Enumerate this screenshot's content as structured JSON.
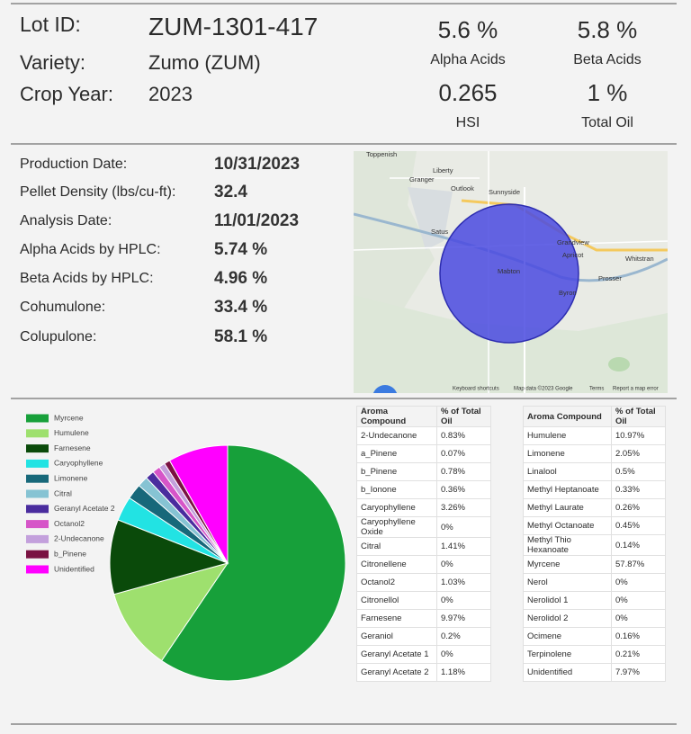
{
  "header": {
    "lot_id_label": "Lot ID:",
    "lot_id": "ZUM-1301-417",
    "variety_label": "Variety:",
    "variety": "Zumo (ZUM)",
    "crop_year_label": "Crop Year:",
    "crop_year": "2023"
  },
  "stats": [
    {
      "value": "5.6 %",
      "label": "Alpha Acids"
    },
    {
      "value": "5.8 %",
      "label": "Beta Acids"
    },
    {
      "value": "0.265",
      "label": "HSI"
    },
    {
      "value": "1 %",
      "label": "Total Oil"
    }
  ],
  "details": [
    {
      "label": "Production Date:",
      "value": "10/31/2023"
    },
    {
      "label": "Pellet Density (lbs/cu-ft):",
      "value": "32.4"
    },
    {
      "label": "Analysis Date:",
      "value": "11/01/2023"
    },
    {
      "label": "Alpha Acids by HPLC:",
      "value": "5.74 %"
    },
    {
      "label": "Beta Acids by HPLC:",
      "value": "4.96 %"
    },
    {
      "label": "Cohumulone:",
      "value": "33.4 %"
    },
    {
      "label": "Colupulone:",
      "value": "58.1 %"
    }
  ],
  "map": {
    "places": [
      "Toppenish",
      "Liberty",
      "Granger",
      "Outlook",
      "Sunnyside",
      "Satus",
      "Grandview",
      "Apricot",
      "Mabton",
      "Whitstran",
      "Prosser",
      "Byron"
    ],
    "footer": [
      "Keyboard shortcuts",
      "Map data ©2023 Google",
      "Terms",
      "Report a map error"
    ]
  },
  "chart_data": {
    "type": "pie",
    "categories": [
      "Myrcene",
      "Humulene",
      "Farnesene",
      "Caryophyllene",
      "Limonene",
      "Citral",
      "Geranyl Acetate 2",
      "Octanol2",
      "2-Undecanone",
      "b_Pinene",
      "Unidentified"
    ],
    "values": [
      57.87,
      10.97,
      9.97,
      3.26,
      2.05,
      1.41,
      1.18,
      1.03,
      0.83,
      0.78,
      7.97
    ],
    "colors": [
      "#17a03a",
      "#9ee06e",
      "#0a4a0a",
      "#22e3e3",
      "#17687a",
      "#86c3d3",
      "#4a2c9e",
      "#d655c8",
      "#c3a0dc",
      "#7a1242",
      "#ff00ff"
    ]
  },
  "tables": [
    {
      "columns": [
        "Aroma Compound",
        "% of Total Oil"
      ],
      "rows": [
        [
          "2-Undecanone",
          "0.83%"
        ],
        [
          "a_Pinene",
          "0.07%"
        ],
        [
          "b_Pinene",
          "0.78%"
        ],
        [
          "b_Ionone",
          "0.36%"
        ],
        [
          "Caryophyllene",
          "3.26%"
        ],
        [
          "Caryophyllene Oxide",
          "0%"
        ],
        [
          "Citral",
          "1.41%"
        ],
        [
          "Citronellene",
          "0%"
        ],
        [
          "Octanol2",
          "1.03%"
        ],
        [
          "Citronellol",
          "0%"
        ],
        [
          "Farnesene",
          "9.97%"
        ],
        [
          "Geraniol",
          "0.2%"
        ],
        [
          "Geranyl Acetate 1",
          "0%"
        ],
        [
          "Geranyl Acetate 2",
          "1.18%"
        ]
      ]
    },
    {
      "columns": [
        "Aroma Compound",
        "% of Total Oil"
      ],
      "rows": [
        [
          "Humulene",
          "10.97%"
        ],
        [
          "Limonene",
          "2.05%"
        ],
        [
          "Linalool",
          "0.5%"
        ],
        [
          "Methyl Heptanoate",
          "0.33%"
        ],
        [
          "Methyl Laurate",
          "0.26%"
        ],
        [
          "Methyl Octanoate",
          "0.45%"
        ],
        [
          "Methyl Thio Hexanoate",
          "0.14%"
        ],
        [
          "Myrcene",
          "57.87%"
        ],
        [
          "Nerol",
          "0%"
        ],
        [
          "Nerolidol 1",
          "0%"
        ],
        [
          "Nerolidol 2",
          "0%"
        ],
        [
          "Ocimene",
          "0.16%"
        ],
        [
          "Terpinolene",
          "0.21%"
        ],
        [
          "Unidentified",
          "7.97%"
        ]
      ]
    }
  ]
}
